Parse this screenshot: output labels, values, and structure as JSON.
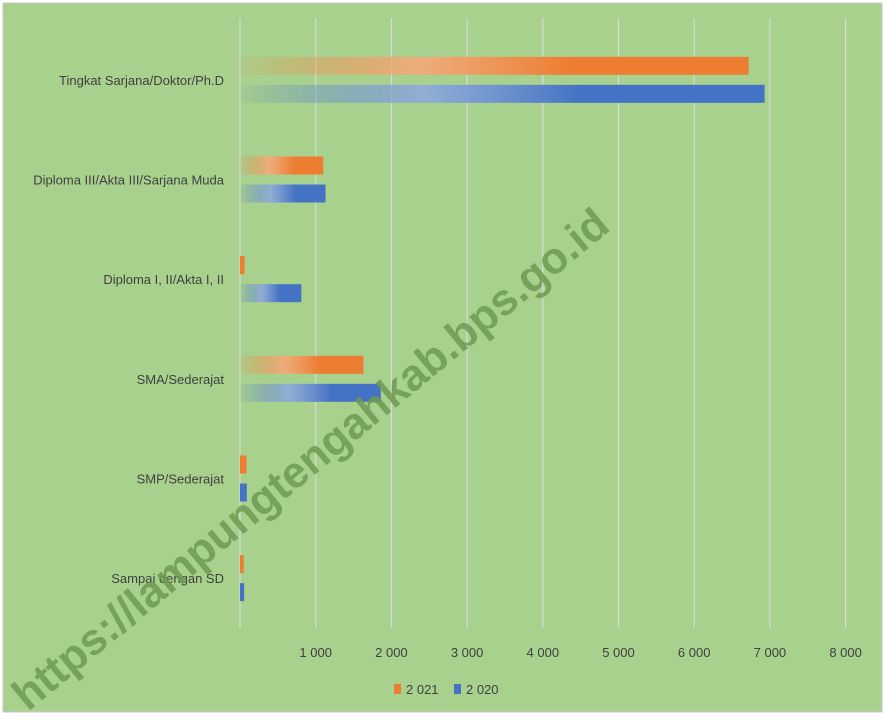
{
  "chart_data": {
    "type": "bar",
    "orientation": "horizontal",
    "categories": [
      "Tingkat Sarjana/Doktor/Ph.D",
      "Diploma III/Akta III/Sarjana Muda",
      "Diploma I, II/Akta I, II",
      "SMA/Sederajat",
      "SMP/Sederajat",
      "Sampai dengan SD"
    ],
    "series": [
      {
        "name": "2 021",
        "color": "#ED7D31",
        "values": [
          6720,
          1100,
          60,
          1630,
          85,
          50
        ]
      },
      {
        "name": "2 020",
        "color": "#4472C4",
        "values": [
          6930,
          1130,
          810,
          1860,
          90,
          55
        ]
      }
    ],
    "x_ticks": [
      "1 000",
      "2 000",
      "3 000",
      "4 000",
      "5 000",
      "6 000",
      "7 000",
      "8 000"
    ],
    "x_tick_values": [
      1000,
      2000,
      3000,
      4000,
      5000,
      6000,
      7000,
      8000
    ],
    "xlim": [
      0,
      8000
    ],
    "grid": true,
    "legend_position": "bottom",
    "background_color": "#A9D18E",
    "watermark": "https://lampungtengahkab.bps.go.id"
  }
}
